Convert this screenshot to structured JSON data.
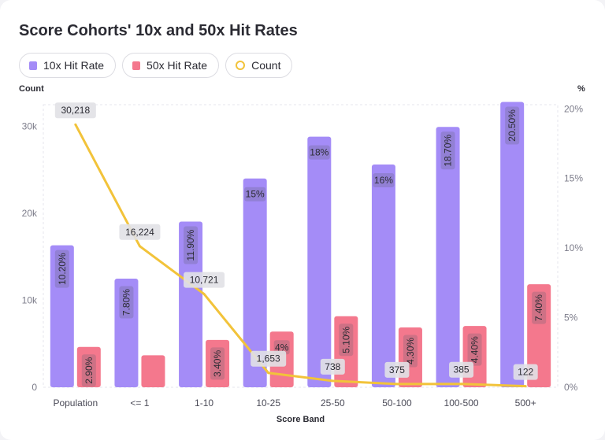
{
  "chart_data": {
    "type": "bar",
    "title": "Score Cohorts' 10x and 50x Hit Rates",
    "xlabel": "Score Band",
    "ylabel_left": "Count",
    "ylabel_right": "%",
    "categories": [
      "Population",
      "<= 1",
      "1-10",
      "10-25",
      "25-50",
      "50-100",
      "100-500",
      "500+"
    ],
    "series": [
      {
        "name": "10x Hit Rate",
        "kind": "bar",
        "axis": "right",
        "color": "#a48cf7",
        "values": [
          10.2,
          7.8,
          11.9,
          15,
          18,
          16,
          18.7,
          20.5
        ],
        "labels": [
          "10.20%",
          "7.80%",
          "11.90%",
          "15%",
          "18%",
          "16%",
          "18.70%",
          "20.50%"
        ]
      },
      {
        "name": "50x Hit Rate",
        "kind": "bar",
        "axis": "right",
        "color": "#f4788d",
        "values": [
          2.9,
          2.3,
          3.4,
          4,
          5.1,
          4.3,
          4.4,
          7.4
        ],
        "labels": [
          "2.90%",
          "",
          "3.40%",
          "4%",
          "5.10%",
          "4.30%",
          "4.40%",
          "7.40%"
        ]
      },
      {
        "name": "Count",
        "kind": "line",
        "axis": "left",
        "color": "#f2c33a",
        "values": [
          30218,
          16224,
          10721,
          1653,
          738,
          375,
          385,
          122
        ],
        "labels": [
          "30,218",
          "16,224",
          "10,721",
          "1,653",
          "738",
          "375",
          "385",
          "122"
        ]
      }
    ],
    "y_left": {
      "ticks": [
        0,
        10000,
        20000,
        30000
      ],
      "tick_labels": [
        "0",
        "10k",
        "20k",
        "30k"
      ],
      "ylim": [
        0,
        32500
      ]
    },
    "y_right": {
      "ticks": [
        0,
        5,
        10,
        15,
        20
      ],
      "tick_labels": [
        "0%",
        "5%",
        "10%",
        "15%",
        "20%"
      ],
      "ylim": [
        0,
        20.3
      ]
    },
    "grid": false,
    "legend_position": "top-left"
  }
}
